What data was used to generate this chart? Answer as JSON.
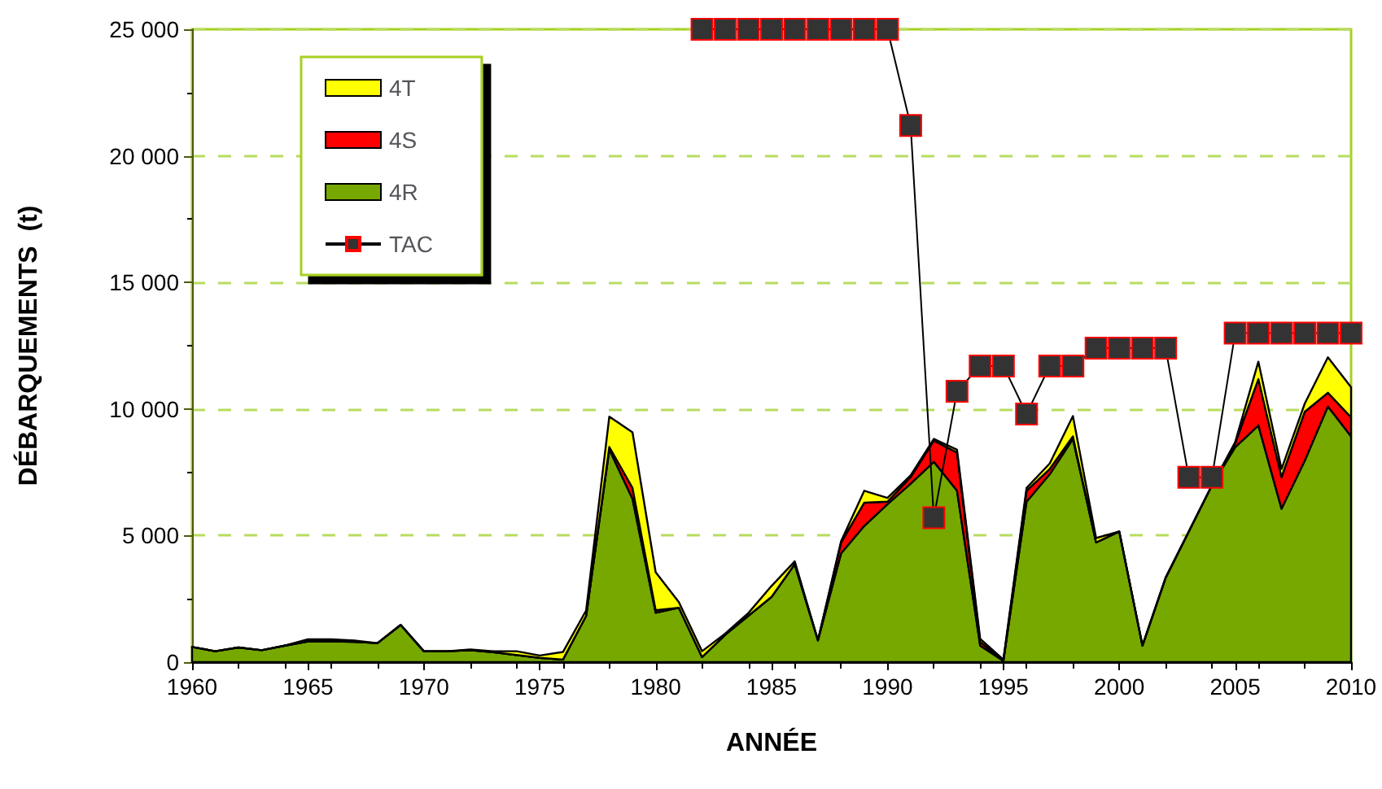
{
  "chart_data": {
    "type": "area",
    "stacked": true,
    "xlabel": "ANNÉE",
    "ylabel": "DÉBARQUEMENTS  (t)",
    "x": [
      1960,
      1961,
      1962,
      1963,
      1964,
      1965,
      1966,
      1967,
      1968,
      1969,
      1970,
      1971,
      1972,
      1973,
      1974,
      1975,
      1976,
      1977,
      1978,
      1979,
      1980,
      1981,
      1982,
      1983,
      1984,
      1985,
      1986,
      1987,
      1988,
      1989,
      1990,
      1991,
      1992,
      1993,
      1994,
      1995,
      1996,
      1997,
      1998,
      1999,
      2000,
      2001,
      2002,
      2003,
      2004,
      2005,
      2006,
      2007,
      2008,
      2009,
      2010
    ],
    "series": [
      {
        "name": "4R",
        "color": "#76a800",
        "values": [
          600,
          430,
          580,
          470,
          650,
          820,
          820,
          800,
          750,
          1470,
          430,
          430,
          470,
          390,
          280,
          170,
          100,
          1830,
          8400,
          6450,
          1950,
          2150,
          200,
          1080,
          1830,
          2580,
          3870,
          860,
          4300,
          5380,
          6240,
          7050,
          7910,
          6770,
          650,
          50,
          6340,
          7420,
          8820,
          4730,
          5160,
          650,
          3330,
          5160,
          6990,
          8490,
          9350,
          6060,
          7950,
          10100,
          8920
        ]
      },
      {
        "name": "4S",
        "color": "#ff0000",
        "values": [
          0,
          0,
          0,
          0,
          0,
          0,
          0,
          0,
          0,
          0,
          0,
          0,
          0,
          0,
          0,
          0,
          0,
          0,
          100,
          430,
          100,
          0,
          0,
          0,
          0,
          0,
          0,
          0,
          430,
          920,
          100,
          260,
          840,
          1510,
          150,
          0,
          430,
          210,
          100,
          0,
          0,
          0,
          0,
          0,
          0,
          150,
          1830,
          1250,
          1940,
          540,
          750
        ]
      },
      {
        "name": "4T",
        "color": "#ffff00",
        "values": [
          0,
          0,
          0,
          0,
          0,
          80,
          80,
          50,
          0,
          0,
          0,
          0,
          30,
          40,
          150,
          90,
          300,
          210,
          1200,
          2200,
          1500,
          220,
          230,
          50,
          110,
          430,
          110,
          0,
          50,
          470,
          150,
          70,
          70,
          110,
          120,
          50,
          110,
          220,
          800,
          170,
          0,
          0,
          0,
          0,
          0,
          50,
          690,
          320,
          320,
          1400,
          1190
        ]
      },
      {
        "name": "TAC",
        "type": "line",
        "color": "#333333",
        "marker": "square",
        "x": [
          1982,
          1983,
          1984,
          1985,
          1986,
          1987,
          1988,
          1989,
          1990,
          1991,
          1992,
          1993,
          1994,
          1995,
          1996,
          1997,
          1998,
          1999,
          2000,
          2001,
          2002,
          2003,
          2004,
          2005,
          2006,
          2007,
          2008,
          2009,
          2010
        ],
        "values": [
          25000,
          25000,
          25000,
          25000,
          25000,
          25000,
          25000,
          25000,
          25000,
          21200,
          5700,
          10700,
          11700,
          11700,
          9800,
          11700,
          11700,
          12400,
          12400,
          12400,
          12400,
          7300,
          7300,
          13000,
          13000,
          13000,
          13000,
          13000,
          13000
        ]
      }
    ],
    "xlim": [
      1960,
      2010
    ],
    "xticks": [
      1960,
      1965,
      1970,
      1975,
      1980,
      1985,
      1990,
      1995,
      2000,
      2005,
      2010
    ],
    "ylim": [
      0,
      25000
    ],
    "yticks": [
      {
        "value": 0,
        "label": "0"
      },
      {
        "value": 5000,
        "label": "5 000"
      },
      {
        "value": 10000,
        "label": "10 000"
      },
      {
        "value": 15000,
        "label": "15 000"
      },
      {
        "value": 20000,
        "label": "20 000"
      },
      {
        "value": 25000,
        "label": "25 000"
      }
    ],
    "grid": "y",
    "legend": "top left"
  }
}
